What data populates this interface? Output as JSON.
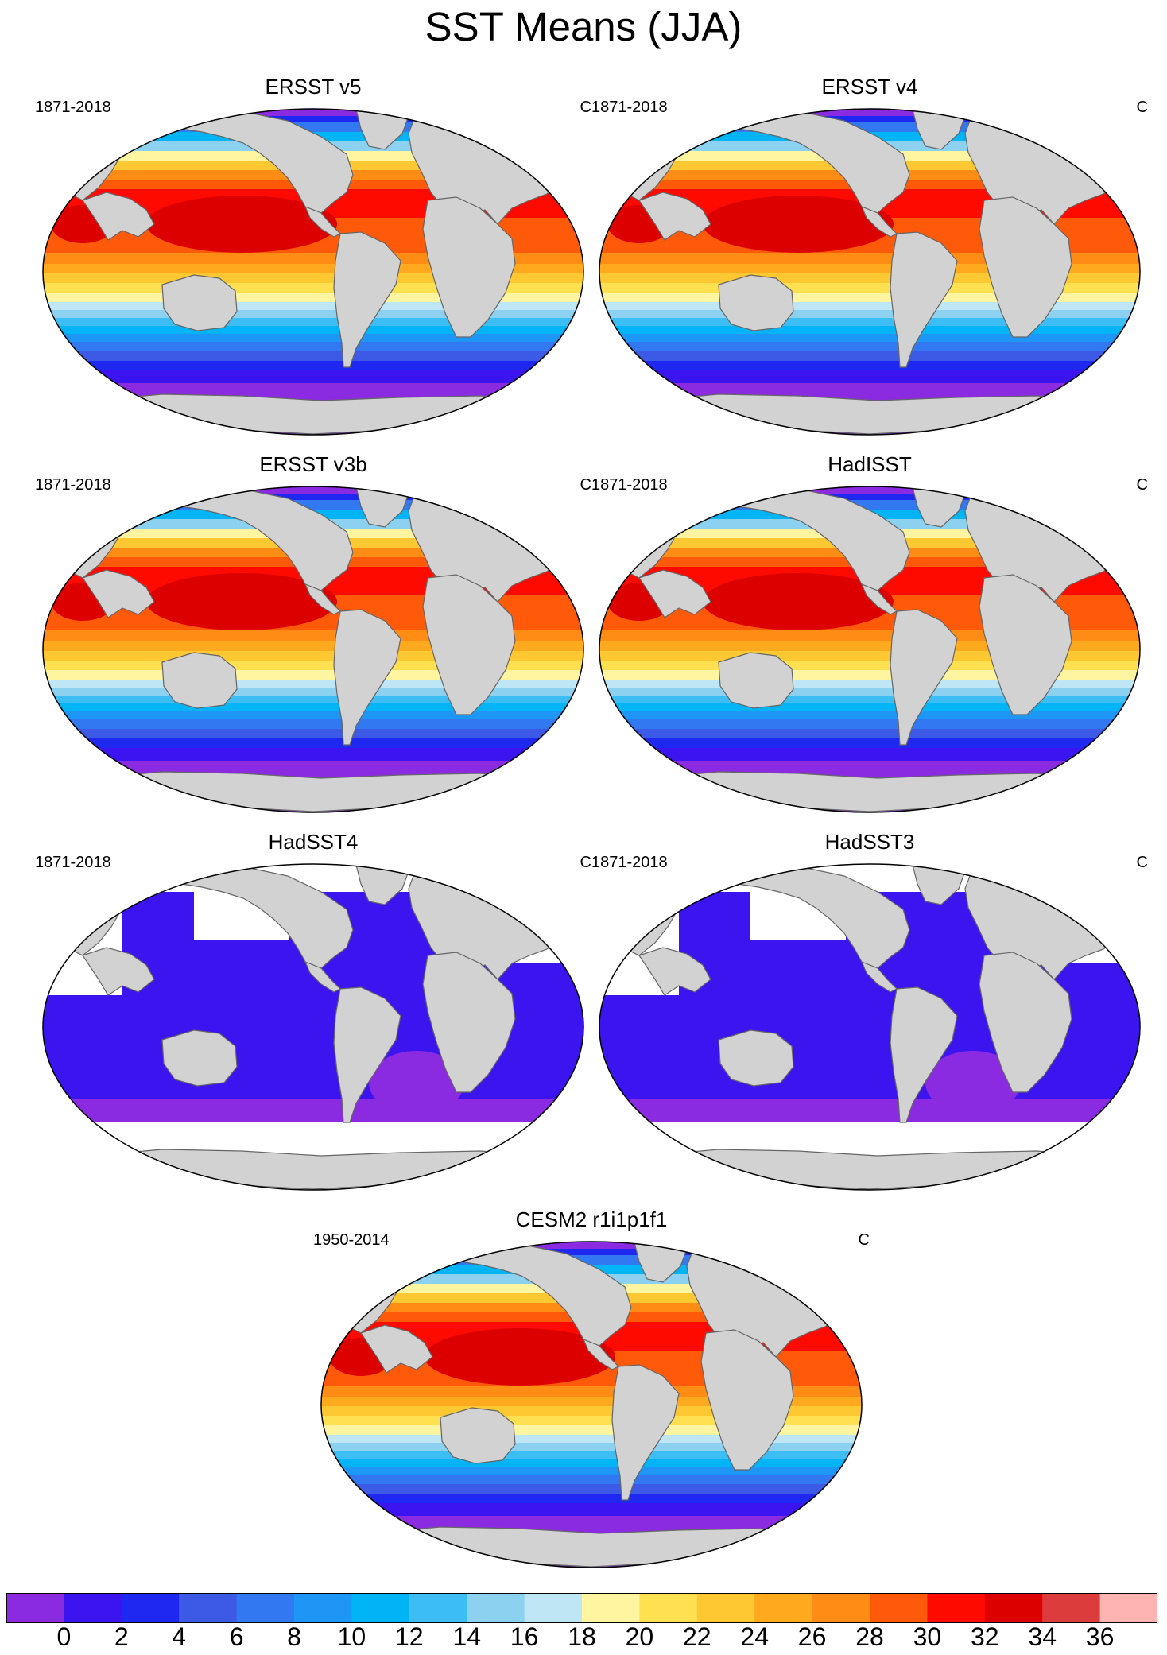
{
  "title": "SST Means (JJA)",
  "panels": [
    {
      "title": "ERSST v5",
      "years": "1871-2018",
      "unit": "C",
      "style": "full"
    },
    {
      "title": "ERSST v4",
      "years": "1871-2018",
      "unit": "C",
      "style": "full"
    },
    {
      "title": "ERSST v3b",
      "years": "1871-2018",
      "unit": "C",
      "style": "full"
    },
    {
      "title": "HadISST",
      "years": "1871-2018",
      "unit": "C",
      "style": "full"
    },
    {
      "title": "HadSST4",
      "years": "1871-2018",
      "unit": "C",
      "style": "sparse"
    },
    {
      "title": "HadSST3",
      "years": "1871-2018",
      "unit": "C",
      "style": "sparse"
    },
    {
      "title": "CESM2 r1i1p1f1",
      "years": "1950-2014",
      "unit": "C",
      "style": "full"
    }
  ],
  "colorbar": {
    "labels": [
      "0",
      "2",
      "4",
      "6",
      "8",
      "10",
      "12",
      "14",
      "16",
      "18",
      "20",
      "22",
      "24",
      "26",
      "28",
      "30",
      "32",
      "34",
      "36"
    ],
    "colors": [
      "#8a2be2",
      "#3c14f0",
      "#1e28f0",
      "#3c5ae6",
      "#3278f0",
      "#1e96f5",
      "#00b4f5",
      "#3cbef5",
      "#8cd2f0",
      "#bee6f5",
      "#fff5a0",
      "#fee050",
      "#fec832",
      "#ffaa1e",
      "#ff8c14",
      "#ff5a0a",
      "#ff0a00",
      "#dc0000",
      "#dc3c3c",
      "#ffb4b4"
    ]
  },
  "chart_data": {
    "type": "heatmap",
    "title": "SST Means (JJA)",
    "projection": "Robinson (global)",
    "colorbar_range": [
      0,
      36
    ],
    "colorbar_step": 2,
    "colorbar_unit": "C",
    "land_color": "#d2d2d2",
    "missing_color": "#ffffff"
  }
}
